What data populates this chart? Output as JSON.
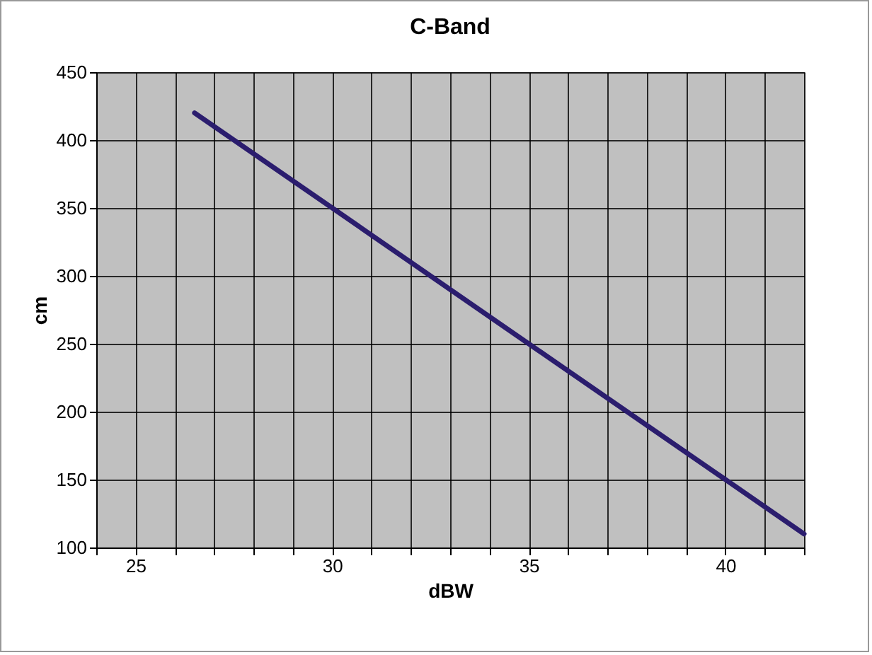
{
  "chart_data": {
    "type": "line",
    "title": "C-Band",
    "xlabel": "dBW",
    "ylabel": "cm",
    "x": [
      26.5,
      42
    ],
    "series": [
      {
        "color": "#2b1d6e",
        "values": [
          420,
          110
        ]
      }
    ],
    "xlim": [
      24,
      42
    ],
    "xticks": [
      {
        "value": 24,
        "label": null
      },
      25,
      {
        "value": 26,
        "label": null
      },
      {
        "value": 27,
        "label": null
      },
      {
        "value": 28,
        "label": null
      },
      {
        "value": 29,
        "label": null
      },
      30,
      {
        "value": 31,
        "label": null
      },
      {
        "value": 32,
        "label": null
      },
      {
        "value": 33,
        "label": null
      },
      {
        "value": 34,
        "label": null
      },
      35,
      {
        "value": 36,
        "label": null
      },
      {
        "value": 37,
        "label": null
      },
      {
        "value": 38,
        "label": null
      },
      {
        "value": 39,
        "label": null
      },
      40,
      {
        "value": 41,
        "label": null
      },
      {
        "value": 42,
        "label": null
      }
    ],
    "ylim": [
      100,
      450
    ],
    "yticks": [
      100,
      150,
      200,
      250,
      300,
      350,
      400,
      450
    ],
    "grid": true,
    "marker": "none",
    "line_style": "solid"
  }
}
